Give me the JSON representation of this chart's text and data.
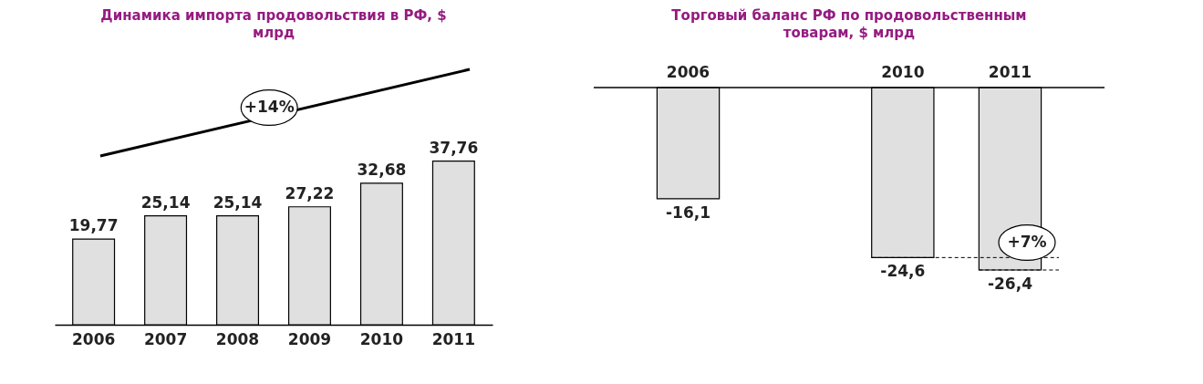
{
  "chart_data": [
    {
      "type": "bar",
      "title": "Динамика импорта продовольствия в РФ, $ млрд",
      "categories": [
        "2006",
        "2007",
        "2008",
        "2009",
        "2010",
        "2011"
      ],
      "values": [
        19.77,
        25.14,
        25.14,
        27.22,
        32.68,
        37.76
      ],
      "value_labels": [
        "19,77",
        "25,14",
        "25,14",
        "27,22",
        "32,68",
        "37,76"
      ],
      "color": "#e0e0e0",
      "annotations": [
        "+14%"
      ],
      "tick_labels": "x"
    },
    {
      "type": "bar",
      "title": "Торговый баланс РФ по продовольственным товарам, $ млрд",
      "categories": [
        "2006",
        null,
        "2010",
        "2011"
      ],
      "values": [
        -16.1,
        null,
        -24.6,
        -26.4
      ],
      "value_labels": [
        "-16,1",
        null,
        "-24,6",
        "-26,4"
      ],
      "color": "#e0e0e0",
      "annotations": [
        "+7%"
      ],
      "ref_lines": [
        {
          "axis": "y",
          "value": -24.6,
          "line_style": "dashed"
        },
        {
          "axis": "y",
          "value": -26.4,
          "line_style": "dashed"
        }
      ],
      "tick_labels": "x"
    }
  ]
}
